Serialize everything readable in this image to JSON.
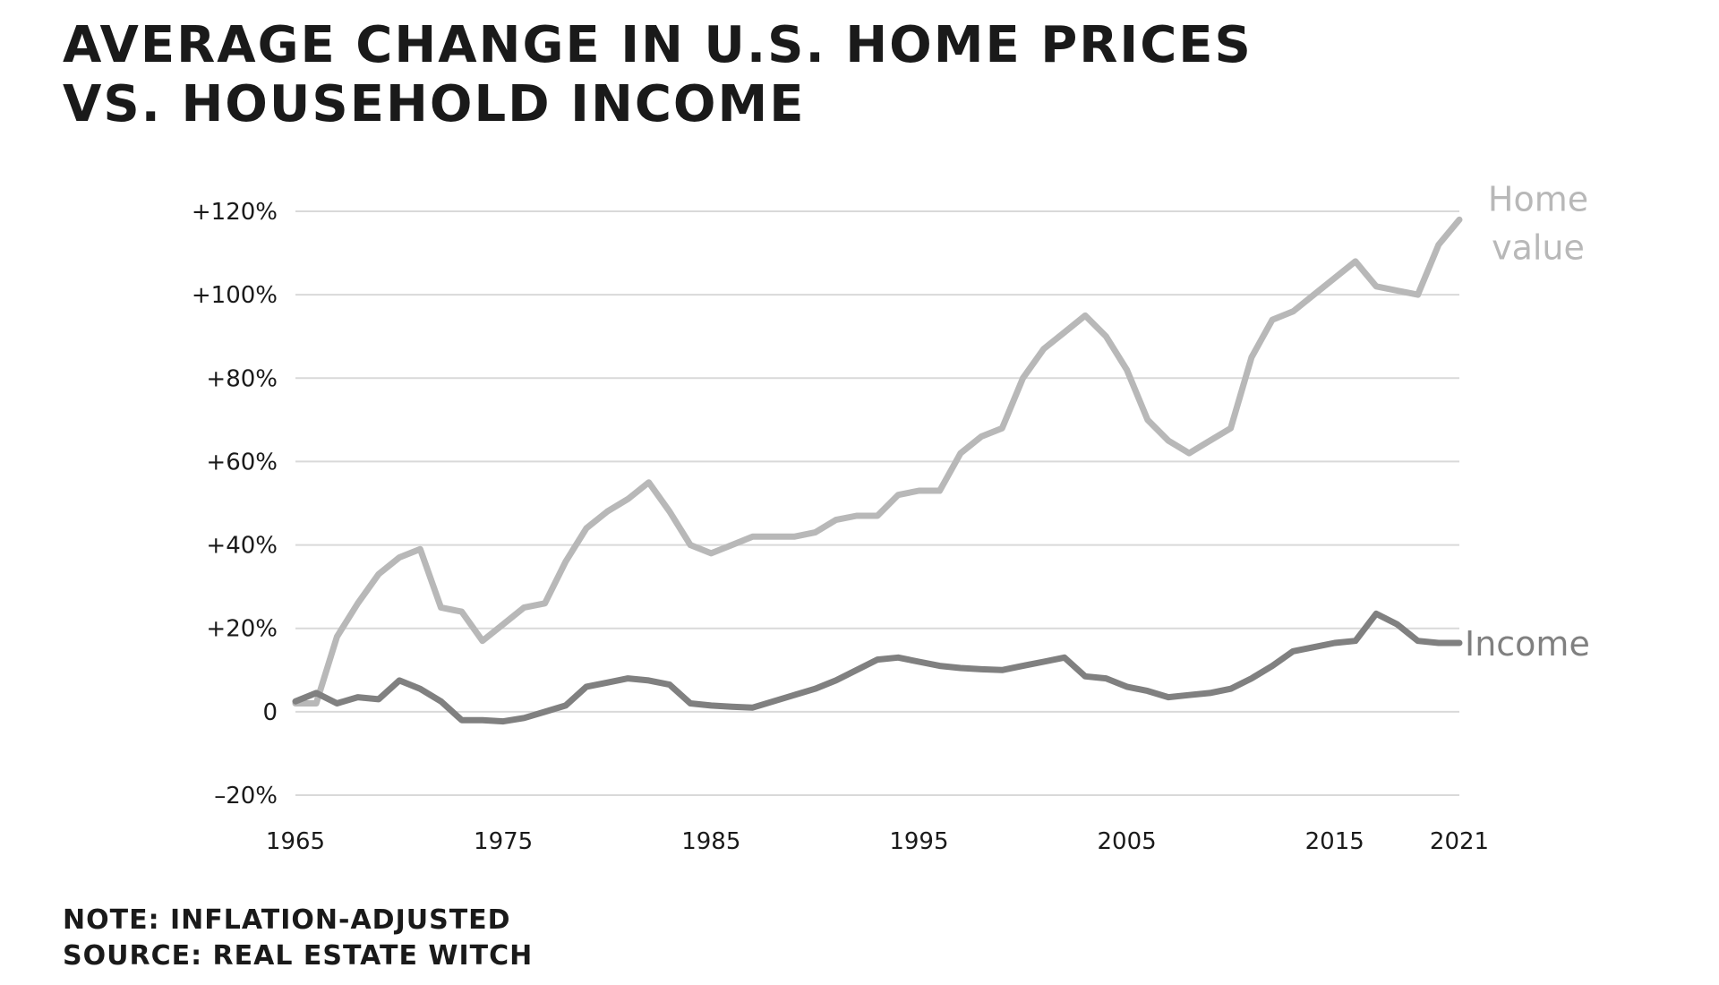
{
  "title_lines": [
    "Average change in U.S. home prices",
    "vs. household income"
  ],
  "footnotes": [
    "Note: Inflation-adjusted",
    "Source: Real Estate Witch"
  ],
  "colors": {
    "home_value": "#b8b8b8",
    "income": "#808080",
    "grid": "#d9d9d9",
    "text": "#1a1a1a"
  },
  "chart_data": {
    "type": "line",
    "title": "Average change in U.S. home prices vs. household income",
    "xlabel": "",
    "ylabel": "",
    "xlim": [
      1965,
      2021
    ],
    "ylim": [
      -20,
      120
    ],
    "y_ticks": [
      {
        "value": 120,
        "label": "+120%"
      },
      {
        "value": 100,
        "label": "+100%"
      },
      {
        "value": 80,
        "label": "+80%"
      },
      {
        "value": 60,
        "label": "+60%"
      },
      {
        "value": 40,
        "label": "+40%"
      },
      {
        "value": 20,
        "label": "+20%"
      },
      {
        "value": 0,
        "label": "0"
      },
      {
        "value": -20,
        "label": "–20%"
      }
    ],
    "x_ticks": [
      {
        "value": 1965,
        "label": "1965"
      },
      {
        "value": 1975,
        "label": "1975"
      },
      {
        "value": 1985,
        "label": "1985"
      },
      {
        "value": 1995,
        "label": "1995"
      },
      {
        "value": 2005,
        "label": "2005"
      },
      {
        "value": 2015,
        "label": "2015"
      },
      {
        "value": 2021,
        "label": "2021"
      }
    ],
    "grid": true,
    "legend": "direct labels at right end of lines",
    "series": [
      {
        "name": "Home value",
        "label_lines": [
          "Home",
          "value"
        ],
        "x": [
          1965,
          1966,
          1967,
          1968,
          1969,
          1970,
          1971,
          1972,
          1973,
          1974,
          1975,
          1976,
          1977,
          1978,
          1979,
          1980,
          1981,
          1982,
          1983,
          1984,
          1985,
          1986,
          1987,
          1988,
          1989,
          1990,
          1991,
          1992,
          1993,
          1994,
          1995,
          1996,
          1997,
          1998,
          1999,
          2000,
          2001,
          2002,
          2003,
          2004,
          2005,
          2006,
          2007,
          2008,
          2009,
          2010,
          2011,
          2012,
          2013,
          2014,
          2015,
          2016,
          2017,
          2018,
          2019,
          2020,
          2021
        ],
        "values": [
          2,
          2,
          18,
          26,
          33,
          37,
          39,
          25,
          24,
          17,
          21,
          25,
          26,
          36,
          44,
          48,
          51,
          55,
          48,
          40,
          38,
          40,
          42,
          42,
          42,
          43,
          46,
          47,
          47,
          52,
          53,
          53,
          62,
          66,
          68,
          80,
          87,
          91,
          95,
          90,
          82,
          70,
          65,
          62,
          65,
          68,
          85,
          94,
          96,
          100,
          104,
          108,
          102,
          101,
          100,
          112,
          118
        ]
      },
      {
        "name": "Income",
        "label_lines": [
          "Income"
        ],
        "x": [
          1965,
          1966,
          1967,
          1968,
          1969,
          1970,
          1971,
          1972,
          1973,
          1974,
          1975,
          1976,
          1977,
          1978,
          1979,
          1980,
          1981,
          1982,
          1983,
          1984,
          1985,
          1986,
          1987,
          1988,
          1989,
          1990,
          1991,
          1992,
          1993,
          1994,
          1995,
          1996,
          1997,
          1998,
          1999,
          2000,
          2001,
          2002,
          2003,
          2004,
          2005,
          2006,
          2007,
          2008,
          2009,
          2010,
          2011,
          2012,
          2013,
          2014,
          2015,
          2016,
          2017,
          2018,
          2019,
          2020,
          2021
        ],
        "values": [
          2.5,
          4.5,
          2,
          3.5,
          3,
          7.5,
          5.5,
          2.5,
          -2,
          -2,
          -2.3,
          -1.5,
          0,
          1.5,
          6,
          7,
          8,
          7.5,
          6.5,
          2,
          1.5,
          1.2,
          1,
          2.5,
          4,
          5.5,
          7.5,
          10,
          12.5,
          13,
          12,
          11,
          10.5,
          10.2,
          10,
          11,
          12,
          13,
          8.5,
          8,
          6,
          5,
          3.5,
          4,
          4.5,
          5.5,
          8,
          11,
          14.5,
          15.5,
          16.5,
          17,
          23.5,
          21,
          17,
          16.5,
          16.5
        ]
      }
    ]
  }
}
